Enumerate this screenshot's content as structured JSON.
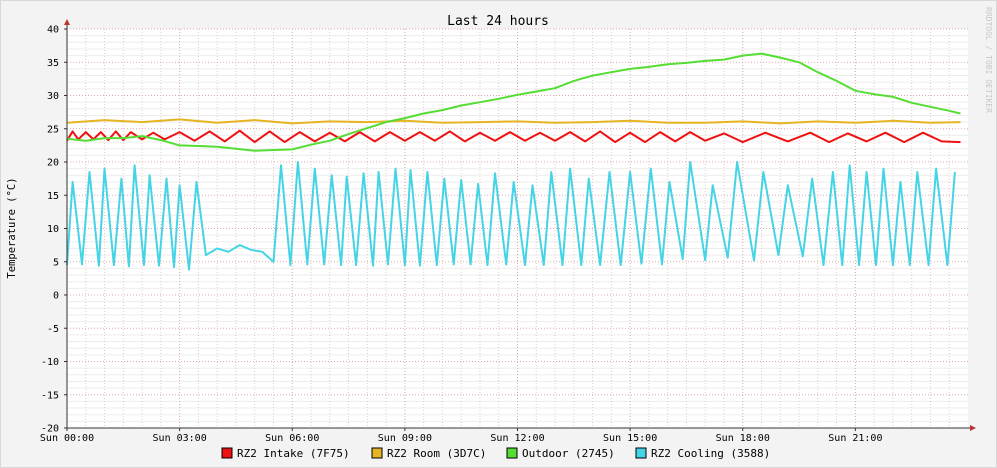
{
  "chart_data": {
    "type": "line",
    "title": "Last 24 hours",
    "ylabel": "Temperature (°C)",
    "watermark": "RRDTOOL / TOBI OETIKER",
    "ylim": [
      -20,
      40
    ],
    "yticks": [
      40,
      35,
      30,
      25,
      20,
      15,
      10,
      5,
      0,
      -5,
      -10,
      -15,
      -20
    ],
    "xlim": [
      0,
      24
    ],
    "xticks": [
      {
        "hour": 0,
        "label": "Sun 00:00"
      },
      {
        "hour": 3,
        "label": "Sun 03:00"
      },
      {
        "hour": 6,
        "label": "Sun 06:00"
      },
      {
        "hour": 9,
        "label": "Sun 09:00"
      },
      {
        "hour": 12,
        "label": "Sun 12:00"
      },
      {
        "hour": 15,
        "label": "Sun 15:00"
      },
      {
        "hour": 18,
        "label": "Sun 18:00"
      },
      {
        "hour": 21,
        "label": "Sun 21:00"
      }
    ],
    "grid": true,
    "legend_position": "bottom",
    "series": [
      {
        "name": "RZ2 Intake (7F75)",
        "color": "#ee1111",
        "x": [
          0,
          0.15,
          0.3,
          0.5,
          0.7,
          0.9,
          1.1,
          1.3,
          1.5,
          1.7,
          2,
          2.3,
          2.6,
          3,
          3.4,
          3.8,
          4.2,
          4.6,
          5,
          5.4,
          5.8,
          6.2,
          6.6,
          7,
          7.4,
          7.8,
          8.2,
          8.6,
          9,
          9.4,
          9.8,
          10.2,
          10.6,
          11,
          11.4,
          11.8,
          12.2,
          12.6,
          13,
          13.4,
          13.8,
          14.2,
          14.6,
          15,
          15.4,
          15.8,
          16.2,
          16.6,
          17,
          17.5,
          18,
          18.6,
          19.2,
          19.8,
          20.3,
          20.8,
          21.3,
          21.8,
          22.3,
          22.8,
          23.3,
          23.8
        ],
        "y": [
          23.2,
          24.6,
          23.4,
          24.5,
          23.4,
          24.5,
          23.3,
          24.6,
          23.3,
          24.5,
          23.4,
          24.4,
          23.4,
          24.5,
          23.2,
          24.6,
          23.1,
          24.7,
          23.0,
          24.6,
          23.0,
          24.5,
          23.1,
          24.4,
          23.1,
          24.5,
          23.1,
          24.5,
          23.2,
          24.5,
          23.2,
          24.6,
          23.1,
          24.4,
          23.2,
          24.5,
          23.2,
          24.4,
          23.2,
          24.5,
          23.1,
          24.6,
          23.0,
          24.4,
          23.0,
          24.5,
          23.1,
          24.5,
          23.2,
          24.3,
          23.0,
          24.4,
          23.1,
          24.4,
          23.0,
          24.3,
          23.1,
          24.4,
          23.0,
          24.4,
          23.1,
          23.0
        ]
      },
      {
        "name": "RZ2 Room (3D7C)",
        "color": "#e6b422",
        "x": [
          0,
          1,
          2,
          3,
          4,
          5,
          6,
          7,
          8,
          9,
          10,
          11,
          12,
          13,
          14,
          15,
          16,
          17,
          18,
          19,
          20,
          21,
          22,
          23,
          23.8
        ],
        "y": [
          25.9,
          26.3,
          26.0,
          26.4,
          25.9,
          26.3,
          25.8,
          26.1,
          26.0,
          26.2,
          25.9,
          26.0,
          26.1,
          25.9,
          26.0,
          26.2,
          25.9,
          25.9,
          26.1,
          25.8,
          26.1,
          25.9,
          26.2,
          25.9,
          26.0
        ]
      },
      {
        "name": "Outdoor (2745)",
        "color": "#55dd33",
        "x": [
          0,
          0.5,
          1,
          1.5,
          2,
          2.5,
          3,
          3.5,
          4,
          4.5,
          5,
          5.5,
          6,
          6.5,
          7,
          7.5,
          8,
          8.5,
          9,
          9.5,
          10,
          10.5,
          11,
          11.5,
          12,
          12.5,
          13,
          13.5,
          14,
          14.5,
          15,
          15.5,
          16,
          16.5,
          17,
          17.5,
          18,
          18.5,
          19,
          19.5,
          20,
          20.5,
          21,
          21.5,
          22,
          22.5,
          23,
          23.5,
          23.8
        ],
        "y": [
          23.5,
          23.2,
          23.6,
          23.6,
          23.9,
          23.3,
          22.5,
          22.4,
          22.3,
          22.0,
          21.7,
          21.8,
          21.9,
          22.6,
          23.2,
          24.2,
          25.1,
          26.0,
          26.6,
          27.3,
          27.8,
          28.5,
          29.0,
          29.5,
          30.1,
          30.6,
          31.1,
          32.2,
          33.0,
          33.5,
          34.0,
          34.3,
          34.7,
          34.9,
          35.2,
          35.4,
          36.0,
          36.3,
          35.7,
          35.0,
          33.5,
          32.2,
          30.7,
          30.2,
          29.8,
          28.9,
          28.3,
          27.7,
          27.3
        ]
      },
      {
        "name": "RZ2 Cooling (3588)",
        "color": "#44d4e6",
        "x": [
          0,
          0.15,
          0.4,
          0.6,
          0.85,
          1,
          1.25,
          1.45,
          1.65,
          1.8,
          2.05,
          2.2,
          2.45,
          2.65,
          2.85,
          3,
          3.25,
          3.45,
          3.7,
          4,
          4.3,
          4.6,
          4.9,
          5.2,
          5.5,
          5.7,
          5.95,
          6.15,
          6.4,
          6.6,
          6.85,
          7.05,
          7.3,
          7.45,
          7.7,
          7.9,
          8.15,
          8.3,
          8.55,
          8.75,
          9,
          9.15,
          9.4,
          9.6,
          9.85,
          10.05,
          10.3,
          10.5,
          10.75,
          10.95,
          11.2,
          11.4,
          11.7,
          11.9,
          12.2,
          12.4,
          12.7,
          12.9,
          13.2,
          13.4,
          13.7,
          13.9,
          14.2,
          14.45,
          14.75,
          15,
          15.3,
          15.55,
          15.85,
          16.05,
          16.4,
          16.6,
          17,
          17.2,
          17.6,
          17.85,
          18.3,
          18.55,
          18.95,
          19.2,
          19.6,
          19.85,
          20.15,
          20.4,
          20.65,
          20.85,
          21.1,
          21.3,
          21.55,
          21.75,
          22,
          22.2,
          22.45,
          22.65,
          22.95,
          23.15,
          23.45,
          23.65
        ],
        "y": [
          4.5,
          17.0,
          4.6,
          18.5,
          4.4,
          19.0,
          4.5,
          17.5,
          4.3,
          19.5,
          4.5,
          18.0,
          4.4,
          17.5,
          4.2,
          16.5,
          3.8,
          17.0,
          6.0,
          7.0,
          6.5,
          7.5,
          6.8,
          6.5,
          5.0,
          19.5,
          4.5,
          20.0,
          4.6,
          19.0,
          4.6,
          18.0,
          4.5,
          17.8,
          4.5,
          18.3,
          4.4,
          18.5,
          4.6,
          19.0,
          4.5,
          18.8,
          4.4,
          18.5,
          4.5,
          17.5,
          4.6,
          17.3,
          4.6,
          16.7,
          4.5,
          18.3,
          4.6,
          17.0,
          4.5,
          16.5,
          4.5,
          18.5,
          4.5,
          19.0,
          4.5,
          17.5,
          4.5,
          18.5,
          4.5,
          18.5,
          4.7,
          19.0,
          4.6,
          17.0,
          5.4,
          20.0,
          5.2,
          16.5,
          5.6,
          20.0,
          5.2,
          18.5,
          6.0,
          16.5,
          5.8,
          17.5,
          4.5,
          18.5,
          4.5,
          19.5,
          4.5,
          18.5,
          4.5,
          19.0,
          4.5,
          17.0,
          4.5,
          18.5,
          4.5,
          19.0,
          4.5,
          18.5
        ]
      }
    ]
  }
}
